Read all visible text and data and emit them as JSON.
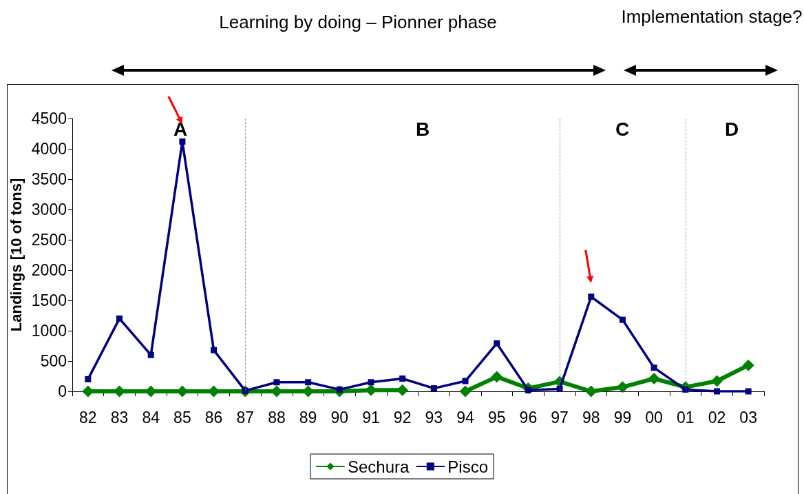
{
  "chart_data": {
    "type": "line",
    "ylabel": "Landings [10 of tons]",
    "categories": [
      "82",
      "83",
      "84",
      "85",
      "86",
      "87",
      "88",
      "89",
      "90",
      "91",
      "92",
      "93",
      "94",
      "95",
      "96",
      "97",
      "98",
      "99",
      "00",
      "01",
      "02",
      "03"
    ],
    "series": [
      {
        "name": "Sechura",
        "color": "#008000",
        "marker": "diamond",
        "values": [
          0,
          0,
          0,
          0,
          0,
          0,
          0,
          0,
          0,
          20,
          20,
          null,
          0,
          240,
          50,
          160,
          0,
          70,
          210,
          70,
          170,
          430
        ]
      },
      {
        "name": "Pisco",
        "color": "#000080",
        "marker": "square",
        "values": [
          200,
          1200,
          600,
          4120,
          680,
          10,
          150,
          150,
          30,
          150,
          210,
          50,
          170,
          790,
          20,
          40,
          1560,
          1180,
          390,
          30,
          0,
          0
        ]
      }
    ],
    "ylim": [
      0,
      4500
    ],
    "yticks": [
      0,
      500,
      1000,
      1500,
      2000,
      2500,
      3000,
      3500,
      4000,
      4500
    ],
    "grid": false,
    "legend": "bottom",
    "line_style": "solid",
    "ref_lines": [
      {
        "axis": "x",
        "value": "87",
        "color": "#808080",
        "line_style": "dotted"
      },
      {
        "axis": "x",
        "value": "97",
        "color": "#808080",
        "line_style": "dotted"
      },
      {
        "axis": "x",
        "value": "01",
        "color": "#808080",
        "line_style": "dotted"
      }
    ],
    "annotations": [
      "Learning by doing – Pionner phase",
      "Implementation stage?",
      "A",
      "B",
      "C",
      "D"
    ]
  }
}
